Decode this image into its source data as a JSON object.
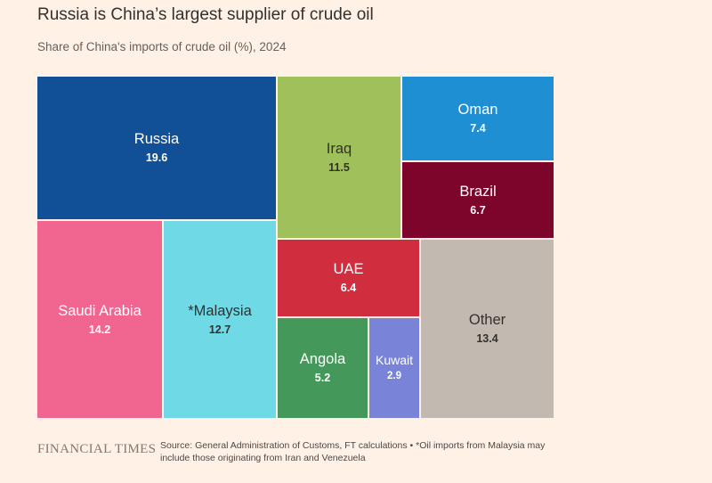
{
  "title": "Russia is China’s largest supplier of crude oil",
  "subtitle": "Share of China's imports of crude oil (%), 2024",
  "chart_data": {
    "type": "treemap",
    "title": "Russia is China’s largest supplier of crude oil",
    "subtitle": "Share of China's imports of crude oil (%), 2024",
    "unit": "%",
    "items": [
      {
        "name": "Russia",
        "value": 19.6,
        "display_value": "19.6",
        "color": "#114f96",
        "text_color": "#ffffff"
      },
      {
        "name": "Iraq",
        "value": 11.5,
        "display_value": "11.5",
        "color": "#9fc05a",
        "text_color": "#33302e"
      },
      {
        "name": "Oman",
        "value": 7.4,
        "display_value": "7.4",
        "color": "#1f8fd3",
        "text_color": "#ffffff"
      },
      {
        "name": "Brazil",
        "value": 6.7,
        "display_value": "6.7",
        "color": "#7d052b",
        "text_color": "#ffffff"
      },
      {
        "name": "Saudi Arabia",
        "value": 14.2,
        "display_value": "14.2",
        "color": "#f16591",
        "text_color": "#ffffff"
      },
      {
        "name": "*Malaysia",
        "value": 12.7,
        "display_value": "12.7",
        "color": "#6fdae6",
        "text_color": "#33302e"
      },
      {
        "name": "UAE",
        "value": 6.4,
        "display_value": "6.4",
        "color": "#d02e3f",
        "text_color": "#ffffff"
      },
      {
        "name": "Other",
        "value": 13.4,
        "display_value": "13.4",
        "color": "#c2b9b1",
        "text_color": "#33302e"
      },
      {
        "name": "Angola",
        "value": 5.2,
        "display_value": "5.2",
        "color": "#44995a",
        "text_color": "#ffffff"
      },
      {
        "name": "Kuwait",
        "value": 2.9,
        "display_value": "2.9",
        "color": "#7984d8",
        "text_color": "#ffffff"
      }
    ]
  },
  "footer": {
    "logo": "FINANCIAL TIMES",
    "source": "Source: General Administration of Customs, FT calculations • *Oil imports from Malaysia may include those originating from Iran and Venezuela"
  }
}
